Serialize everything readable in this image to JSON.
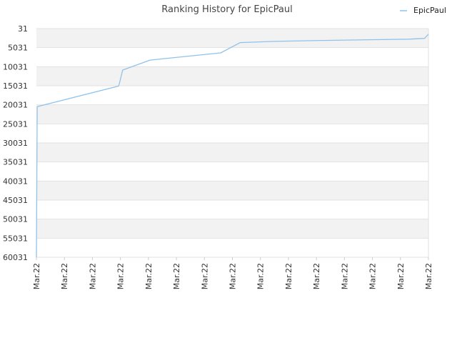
{
  "chart_data": {
    "type": "line",
    "title": "Ranking History for EpicPaul",
    "xlabel": "",
    "ylabel": "",
    "y_inverted": true,
    "ylim": [
      31,
      60031
    ],
    "y_ticks": [
      31,
      5031,
      10031,
      15031,
      20031,
      25031,
      30031,
      35031,
      40031,
      45031,
      50031,
      55031,
      60031
    ],
    "y_tick_labels": [
      "31",
      "5031",
      "10031",
      "15031",
      "20031",
      "25031",
      "30031",
      "35031",
      "40031",
      "45031",
      "50031",
      "55031",
      "60031"
    ],
    "x_tick_labels": [
      "Mar.22",
      "Mar.22",
      "Mar.22",
      "Mar.22",
      "Mar.22",
      "Mar.22",
      "Mar.22",
      "Mar.22",
      "Mar.22",
      "Mar.22",
      "Mar.22",
      "Mar.22",
      "Mar.22",
      "Mar.22",
      "Mar.22"
    ],
    "grid": true,
    "alternating_bands": true,
    "legend_position": "top-right",
    "series": [
      {
        "name": "EpicPaul",
        "color": "#90c2ea",
        "x": [
          0,
          0.002,
          0.21,
          0.22,
          0.29,
          0.47,
          0.52,
          0.6,
          0.7,
          0.95,
          0.99,
          1.0
        ],
        "values": [
          60031,
          20500,
          15100,
          10900,
          8300,
          6400,
          3700,
          3400,
          3200,
          2800,
          2600,
          1500
        ]
      }
    ],
    "band_color": "#f2f2f2",
    "grid_color": "#e2e2e2"
  }
}
